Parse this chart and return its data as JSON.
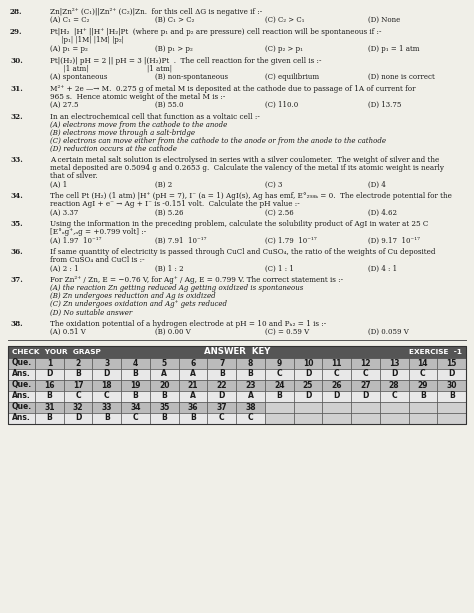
{
  "bg_color": "#f0efe8",
  "text_color": "#1a1a1a",
  "table_header_bg": "#555555",
  "table_row_que_bg": "#bbbbbb",
  "table_row_ans_bg": "#e8e8e8",
  "table_empty_bg": "#d0d0d0",
  "table_header_text": "#ffffff",
  "q28_text": "Zn|Zn²⁺ (C₁)||Zn²⁺ (C₂)|Zn.  for this cell ΔG is negative if :-",
  "q28_opts": [
    "(A) C₁ = C₂",
    "(B) C₁ > C₂",
    "(C) C₂ > C₁",
    "(D) None"
  ],
  "q29_text": "Pt|H₂  |H⁺ ||H⁺ |H₂|Pt  (where p₁ and p₂ are pressure) cell reaction will be spontaneous if :-",
  "q29_sub": "     |p₁| |1M| |1M| |p₂|",
  "q29_opts": [
    "(A) p₁ = p₂",
    "(B) p₁ > p₂",
    "(C) p₂ > p₁",
    "(D) p₁ = 1 atm"
  ],
  "q30_text": "Pt|(H₂)| pH = 2 || pH = 3 |(H₂)Pt  .  The cell reaction for the given cell is :-",
  "q30_sub": "      |1 atm|                          |1 atm|",
  "q30_opts": [
    "(A) spontaneous",
    "(B) non-spontaneous",
    "(C) equilibrium",
    "(D) none is correct"
  ],
  "q31_text1": "M²⁺ + 2e —→ M.  0.275 g of metal M is deposited at the cathode due to passage of 1A of current for",
  "q31_text2": "965 s.  Hence atomic weight of the metal M is :-",
  "q31_opts": [
    "(A) 27.5",
    "(B) 55.0",
    "(C) 110.0",
    "(D) 13.75"
  ],
  "q32_text": "In an electrochemical cell that function as a voltaic cell :-",
  "q32_opts": [
    "(A) electrons move from the cathode to the anode",
    "(B) electrons move through a salt-bridge",
    "(C) electrons can move either from the cathode to the anode or from the anode to the cathode",
    "(D) reduction occurs at the cathode"
  ],
  "q33_text1": "A certain metal salt solution is electrolysed in series with a silver coulometer.  The weight of silver and the",
  "q33_text2": "metal deposited are 0.5094 g and 0.2653 g.  Calculate the valency of the metal if its atomic weight is nearly",
  "q33_text3": "that of silver.",
  "q33_opts": [
    "(A) 1",
    "(B) 2",
    "(C) 3",
    "(D) 4"
  ],
  "q34_text1": "The cell Pt (H₂) (1 atm) |H⁺ (pH = 7), I⁻ (a = 1) AgI(s), Ag has emf, E°₂₉₈ₖ = 0.  The electrode potential for the",
  "q34_text2": "reaction AgI + e⁻ → Ag + I⁻ is -0.151 volt.  Calculate the pH value :-",
  "q34_opts": [
    "(A) 3.37",
    "(B) 5.26",
    "(C) 2.56",
    "(D) 4.62"
  ],
  "q35_text1": "Using the information in the preceding problem, calculate the solubility product of AgI in water at 25 C",
  "q35_text2": "[E°ₐg⁺,ₐg = +0.799 volt] :-",
  "q35_opts": [
    "(A) 1.97  10⁻¹⁷",
    "(B) 7.91  10⁻¹⁷",
    "(C) 1.79  10⁻¹⁷",
    "(D) 9.17  10⁻¹⁷"
  ],
  "q36_text1": "If same quantity of electricity is passed through CuCl and CuSO₄, the ratio of the weights of Cu deposited",
  "q36_text2": "from CuSO₄ and CuCl is :-",
  "q36_opts": [
    "(A) 2 : 1",
    "(B) 1 : 2",
    "(C) 1 : 1",
    "(D) 4 : 1"
  ],
  "q37_text": "For Zn²⁺ / Zn, E = −0.76 V, for Ag⁺ / Ag, E = 0.799 V. The correct statement is :-",
  "q37_opts": [
    "(A) the reaction Zn getting reduced Ag getting oxidized is spontaneous",
    "(B) Zn undergoes reduction and Ag is oxidized",
    "(C) Zn undergoes oxidation and Ag⁺ gets reduced",
    "(D) No suitable answer"
  ],
  "q38_text": "The oxidation potential of a hydrogen electrode at pH = 10 and Pₕ₂ = 1 is :-",
  "q38_opts": [
    "(A) 0.51 V",
    "(B) 0.00 V",
    "(C) = 0.59 V",
    "(D) 0.059 V"
  ],
  "tbl_header_left": "CHECK  YOUR  GRASP",
  "tbl_header_center": "ANSWER  KEY",
  "tbl_header_right": "EXERCISE  -1",
  "tbl_rows": [
    {
      "label": "Que.",
      "vals": [
        "1",
        "2",
        "3",
        "4",
        "5",
        "6",
        "7",
        "8",
        "9",
        "10",
        "11",
        "12",
        "13",
        "14",
        "15"
      ],
      "type": "que"
    },
    {
      "label": "Ans.",
      "vals": [
        "D",
        "B",
        "D",
        "B",
        "A",
        "A",
        "B",
        "B",
        "C",
        "D",
        "C",
        "C",
        "D",
        "C",
        "D"
      ],
      "type": "ans"
    },
    {
      "label": "Que.",
      "vals": [
        "16",
        "17",
        "18",
        "19",
        "20",
        "21",
        "22",
        "23",
        "24",
        "25",
        "26",
        "27",
        "28",
        "29",
        "30"
      ],
      "type": "que"
    },
    {
      "label": "Ans.",
      "vals": [
        "B",
        "C",
        "C",
        "B",
        "B",
        "A",
        "D",
        "A",
        "B",
        "D",
        "D",
        "D",
        "C",
        "B",
        "B"
      ],
      "type": "ans"
    },
    {
      "label": "Que.",
      "vals": [
        "31",
        "32",
        "33",
        "34",
        "35",
        "36",
        "37",
        "38",
        "",
        "",
        "",
        "",
        "",
        "",
        ""
      ],
      "type": "que"
    },
    {
      "label": "Ans.",
      "vals": [
        "B",
        "D",
        "B",
        "C",
        "B",
        "B",
        "C",
        "C",
        "",
        "",
        "",
        "",
        "",
        "",
        ""
      ],
      "type": "ans"
    }
  ]
}
